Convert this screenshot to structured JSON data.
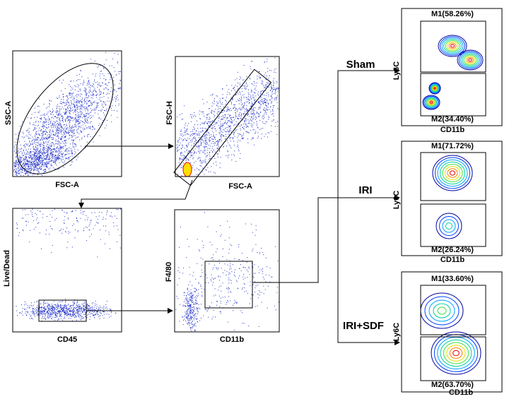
{
  "panels": [
    {
      "x_label": "FSC-A",
      "y_label": "SSC-A"
    },
    {
      "x_label": "FSC-A",
      "y_label": "FSC-H"
    },
    {
      "x_label": "CD45",
      "y_label": "Live/Dead"
    },
    {
      "x_label": "CD11b",
      "y_label": "F4/80"
    }
  ],
  "groups": [
    {
      "name": "Sham",
      "x_label": "CD11b",
      "y_label": "Ly6C",
      "gates": [
        "M1(58.26%)",
        "M2(34.40%)"
      ]
    },
    {
      "name": "IRI",
      "x_label": "CD11b",
      "y_label": "Ly6C",
      "gates": [
        "M1(71.72%)",
        "M2(26.24%)"
      ]
    },
    {
      "name": "IRI+SDF",
      "x_label": "CD11b",
      "y_label": "Ly6C",
      "gates": [
        "M1(33.60%)",
        "M2(63.70%)"
      ]
    }
  ]
}
